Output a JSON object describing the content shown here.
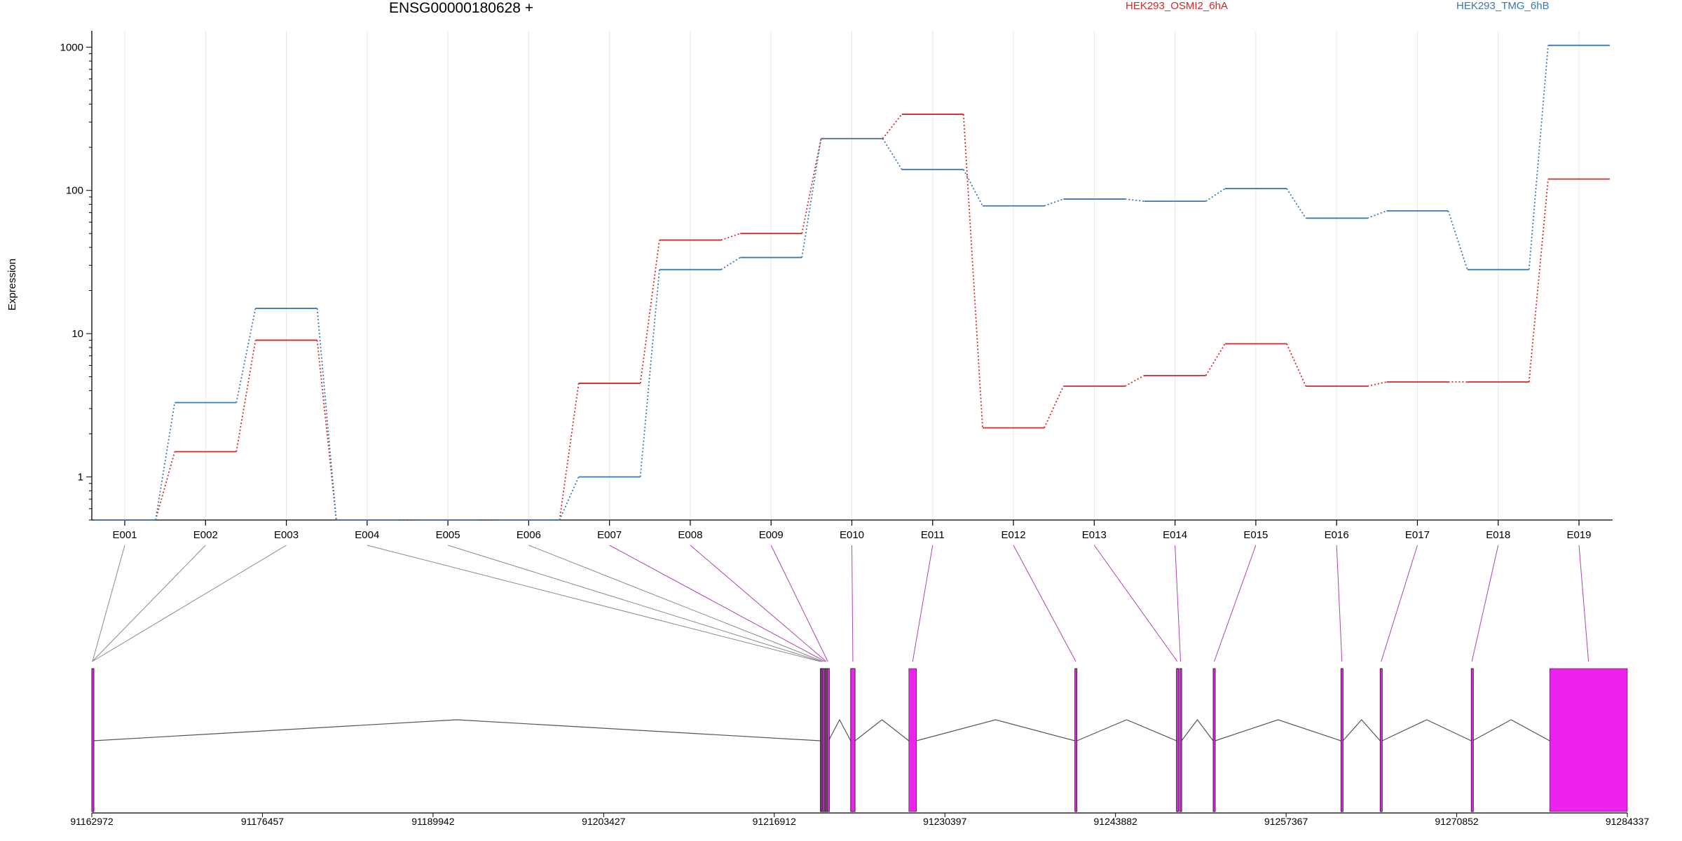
{
  "title": "ENSG00000180628 +",
  "chart_data": {
    "type": "line",
    "title": "ENSG00000180628 +",
    "ylabel": "Expression",
    "xlabel": "",
    "yscale": "log",
    "ylim": [
      0.5,
      1300
    ],
    "yticks": [
      1,
      10,
      100,
      1000
    ],
    "categories": [
      "E001",
      "E002",
      "E003",
      "E004",
      "E005",
      "E006",
      "E007",
      "E008",
      "E009",
      "E010",
      "E011",
      "E012",
      "E013",
      "E014",
      "E015",
      "E016",
      "E017",
      "E018",
      "E019"
    ],
    "series": [
      {
        "name": "HEK293_OSMI2_6hA",
        "color": "#d62728",
        "values": [
          0.5,
          1.5,
          9,
          0.5,
          0.5,
          0.5,
          4.5,
          45,
          50,
          230,
          340,
          2.2,
          4.3,
          5.1,
          8.5,
          4.3,
          4.6,
          4.6,
          120
        ]
      },
      {
        "name": "HEK293_TMG_6hB",
        "color": "#3a78b5",
        "values": [
          0.5,
          3.3,
          15,
          0.5,
          0.5,
          0.5,
          1.0,
          28,
          34,
          230,
          140,
          78,
          87,
          84,
          103,
          64,
          72,
          28,
          1030
        ]
      }
    ],
    "legend_position": "top",
    "grid": true,
    "genomic_axis": {
      "ticks": [
        "91162972",
        "91176457",
        "91189942",
        "91203427",
        "91216912",
        "91230397",
        "91243882",
        "91257367",
        "91270852",
        "91284337"
      ]
    },
    "gene_model": {
      "exon_color": "#ee22ee",
      "exons": [
        {
          "id": "E001",
          "start": 91162972,
          "end": 91163072
        },
        {
          "id": "E002",
          "start": 91162972,
          "end": 91163022
        },
        {
          "id": "E003",
          "start": 91162972,
          "end": 91163022
        },
        {
          "id": "E004",
          "start": 91220550,
          "end": 91220600
        },
        {
          "id": "E005",
          "start": 91220650,
          "end": 91220700
        },
        {
          "id": "E006",
          "start": 91220750,
          "end": 91220800
        },
        {
          "id": "E007",
          "start": 91220900,
          "end": 91220960
        },
        {
          "id": "E008",
          "start": 91221000,
          "end": 91221060
        },
        {
          "id": "E009",
          "start": 91221100,
          "end": 91221200
        },
        {
          "id": "E010",
          "start": 91222950,
          "end": 91223300
        },
        {
          "id": "E011",
          "start": 91227550,
          "end": 91228150
        },
        {
          "id": "E012",
          "start": 91240670,
          "end": 91240830
        },
        {
          "id": "E013",
          "start": 91248700,
          "end": 91248850
        },
        {
          "id": "E014",
          "start": 91248950,
          "end": 91249100
        },
        {
          "id": "E015",
          "start": 91251600,
          "end": 91251760
        },
        {
          "id": "E016",
          "start": 91261700,
          "end": 91261860
        },
        {
          "id": "E017",
          "start": 91264800,
          "end": 91264960
        },
        {
          "id": "E018",
          "start": 91272000,
          "end": 91272100
        },
        {
          "id": "E019",
          "start": 91278200,
          "end": 91284337
        }
      ]
    }
  }
}
